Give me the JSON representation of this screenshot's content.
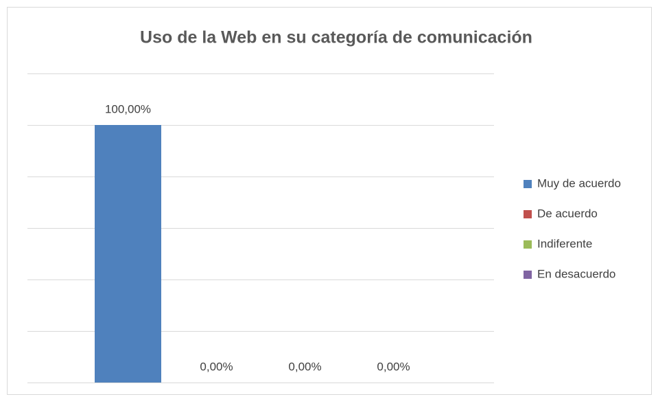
{
  "chart_data": {
    "type": "bar",
    "title": "Uso de la Web en su categoría de comunicación",
    "categories": [
      null
    ],
    "series": [
      {
        "name": "Muy de acuerdo",
        "color": "#4f81bd",
        "values": [
          100
        ],
        "value_labels": [
          "100,00%"
        ]
      },
      {
        "name": "De acuerdo",
        "color": "#c0504d",
        "values": [
          0
        ],
        "value_labels": [
          "0,00%"
        ]
      },
      {
        "name": "Indiferente",
        "color": "#9bbb59",
        "values": [
          0
        ],
        "value_labels": [
          "0,00%"
        ]
      },
      {
        "name": "En desacuerdo",
        "color": "#8064a2",
        "values": [
          0
        ],
        "value_labels": [
          "0,00%"
        ]
      }
    ],
    "ylim": [
      0,
      120
    ],
    "yticks": [
      0,
      20,
      40,
      60,
      80,
      100,
      120
    ],
    "grid": true,
    "legend": "right"
  }
}
